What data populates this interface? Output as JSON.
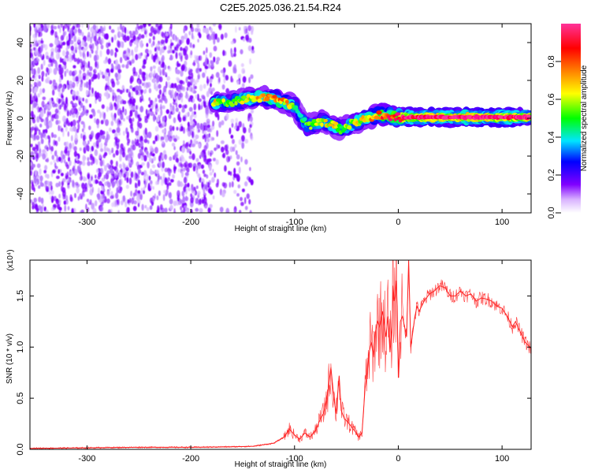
{
  "title": "C2E5.2025.036.21.54.R24",
  "chart_data": [
    {
      "type": "heatmap",
      "xlabel": "Height of straight line (km)",
      "ylabel": "Frequency (Hz)",
      "xlim": [
        -355,
        128
      ],
      "ylim": [
        -50,
        50
      ],
      "xticks": [
        -300,
        -200,
        -100,
        0,
        100
      ],
      "yticks": [
        -40,
        -20,
        0,
        20,
        40
      ],
      "colorbar": {
        "label": "Normalized spectral amplitude",
        "range": [
          0,
          1
        ],
        "ticks": [
          0.0,
          0.2,
          0.4,
          0.6,
          0.8
        ],
        "colors": [
          "#ffffff",
          "#d9b3ff",
          "#8000ff",
          "#0000ff",
          "#00e5ff",
          "#00ff00",
          "#ffff00",
          "#ff8000",
          "#ff0000",
          "#ff0080",
          "#ff3399"
        ]
      },
      "noise_region_x": [
        -355,
        -140
      ],
      "ridge": [
        {
          "x": -178,
          "y": 9,
          "v": 0.58
        },
        {
          "x": -165,
          "y": 8,
          "v": 0.45
        },
        {
          "x": -150,
          "y": 10,
          "v": 0.5
        },
        {
          "x": -135,
          "y": 11,
          "v": 0.6
        },
        {
          "x": -120,
          "y": 10,
          "v": 0.62
        },
        {
          "x": -108,
          "y": 8,
          "v": 0.6
        },
        {
          "x": -100,
          "y": 6,
          "v": 0.45
        },
        {
          "x": -95,
          "y": 1,
          "v": 0.4
        },
        {
          "x": -88,
          "y": -4,
          "v": 0.48
        },
        {
          "x": -80,
          "y": -3,
          "v": 0.5
        },
        {
          "x": -72,
          "y": -2,
          "v": 0.52
        },
        {
          "x": -62,
          "y": -4,
          "v": 0.55
        },
        {
          "x": -55,
          "y": -6,
          "v": 0.45
        },
        {
          "x": -45,
          "y": -3,
          "v": 0.5
        },
        {
          "x": -35,
          "y": -1,
          "v": 0.55
        },
        {
          "x": -25,
          "y": 1,
          "v": 0.6
        },
        {
          "x": -15,
          "y": 2,
          "v": 0.7
        },
        {
          "x": -5,
          "y": 1,
          "v": 0.75
        },
        {
          "x": 5,
          "y": 0.5,
          "v": 0.85
        },
        {
          "x": 20,
          "y": 0.5,
          "v": 0.9
        },
        {
          "x": 40,
          "y": 0.5,
          "v": 0.92
        },
        {
          "x": 60,
          "y": 0.5,
          "v": 0.93
        },
        {
          "x": 80,
          "y": 0.5,
          "v": 0.93
        },
        {
          "x": 100,
          "y": 0.5,
          "v": 0.92
        },
        {
          "x": 115,
          "y": 0.5,
          "v": 0.9
        },
        {
          "x": 128,
          "y": 0.5,
          "v": 0.9
        }
      ]
    },
    {
      "type": "line",
      "xlabel": "Height of straight line (km)",
      "ylabel": "SNR (10 * v/v)",
      "yunit": "(x10⁴)",
      "xlim": [
        -355,
        128
      ],
      "ylim": [
        0,
        1.85
      ],
      "xticks": [
        -300,
        -200,
        -100,
        0,
        100
      ],
      "yticks": [
        0.0,
        0.5,
        1.0,
        1.5
      ],
      "series": [
        {
          "color": "#ff2020",
          "x": [
            -355,
            -300,
            -250,
            -200,
            -160,
            -140,
            -120,
            -110,
            -105,
            -100,
            -95,
            -90,
            -85,
            -80,
            -75,
            -72,
            -68,
            -65,
            -62,
            -60,
            -57,
            -55,
            -52,
            -48,
            -45,
            -42,
            -38,
            -35,
            -32,
            -30,
            -28,
            -26,
            -24,
            -22,
            -20,
            -18,
            -15,
            -12,
            -10,
            -8,
            -6,
            -5,
            -4,
            -3,
            -2,
            -1,
            0,
            2,
            4,
            6,
            8,
            10,
            12,
            14,
            16,
            18,
            20,
            25,
            30,
            35,
            40,
            45,
            50,
            55,
            60,
            65,
            70,
            75,
            80,
            85,
            90,
            95,
            100,
            105,
            110,
            113,
            116,
            119,
            122,
            125,
            128
          ],
          "y": [
            0.01,
            0.015,
            0.02,
            0.02,
            0.025,
            0.03,
            0.06,
            0.12,
            0.2,
            0.14,
            0.1,
            0.16,
            0.12,
            0.18,
            0.3,
            0.35,
            0.55,
            0.8,
            0.5,
            0.35,
            0.72,
            0.38,
            0.3,
            0.26,
            0.22,
            0.18,
            0.12,
            0.16,
            0.6,
            0.75,
            0.95,
            1.05,
            0.9,
            1.15,
            1.25,
            1.2,
            1.35,
            1.1,
            1.3,
            0.95,
            1.2,
            1.6,
            1.45,
            1.5,
            1.65,
            1.4,
            0.7,
            1.25,
            1.3,
            1.2,
            1.1,
            1.85,
            1.0,
            1.15,
            1.3,
            1.4,
            1.35,
            1.45,
            1.52,
            1.55,
            1.6,
            1.58,
            1.5,
            1.5,
            1.55,
            1.5,
            1.52,
            1.45,
            1.48,
            1.47,
            1.45,
            1.4,
            1.38,
            1.3,
            1.2,
            1.25,
            1.18,
            1.12,
            1.05,
            1.02,
            0.98
          ]
        }
      ]
    }
  ]
}
